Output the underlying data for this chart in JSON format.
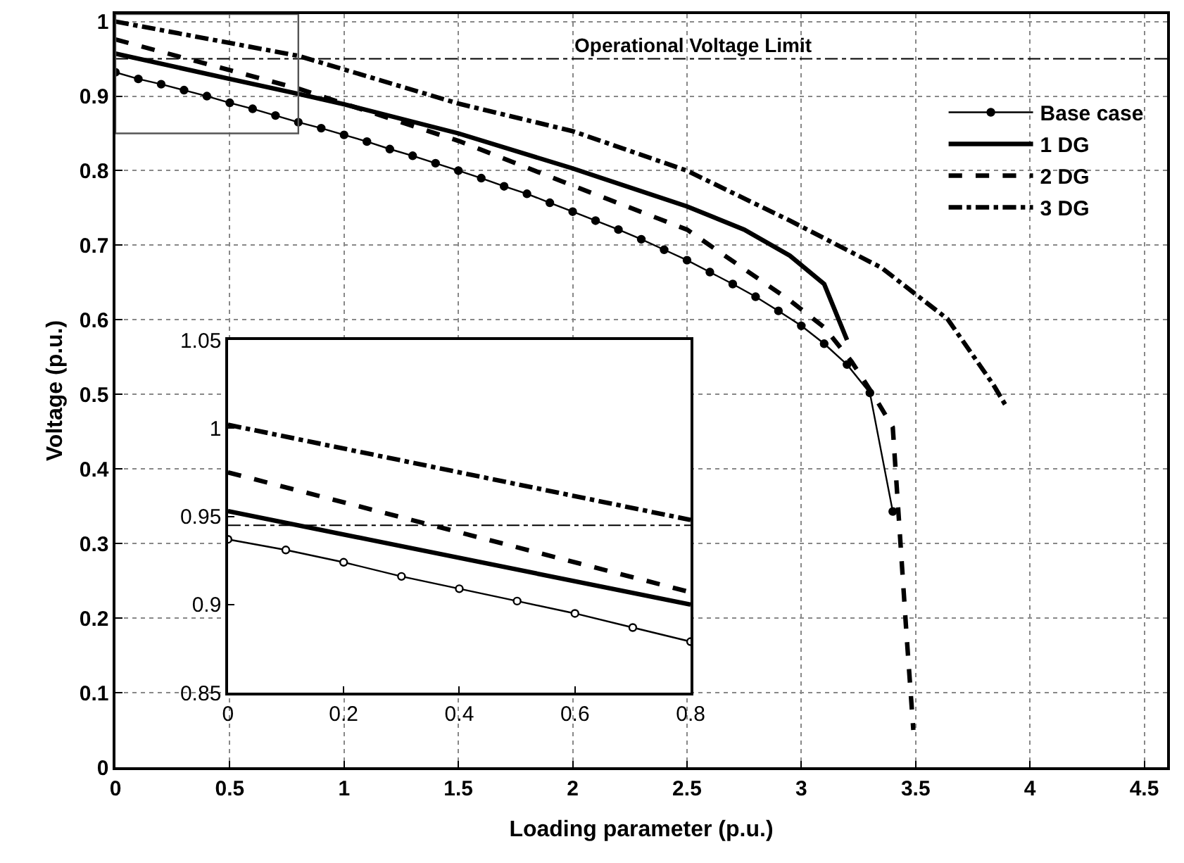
{
  "chart_data": [
    {
      "type": "line",
      "xlabel": "Loading parameter (p.u.)",
      "ylabel": "Voltage (p.u.)",
      "xlim": [
        0,
        4.6
      ],
      "ylim": [
        0,
        1.01
      ],
      "xticks": [
        0,
        0.5,
        1,
        1.5,
        2,
        2.5,
        3,
        3.5,
        4,
        4.5
      ],
      "yticks": [
        0,
        0.1,
        0.2,
        0.3,
        0.4,
        0.5,
        0.6,
        0.7,
        0.8,
        0.9,
        1
      ],
      "grid": true,
      "legend": "top right",
      "series": [
        {
          "name": "Base case",
          "color": "#000000",
          "marker": "circle",
          "line_style": "solid",
          "x": [
            0,
            0.1,
            0.2,
            0.3,
            0.4,
            0.5,
            0.6,
            0.7,
            0.8,
            0.9,
            1.0,
            1.1,
            1.2,
            1.3,
            1.4,
            1.5,
            1.6,
            1.7,
            1.8,
            1.9,
            2.0,
            2.1,
            2.2,
            2.3,
            2.4,
            2.5,
            2.6,
            2.7,
            2.8,
            2.9,
            3.0,
            3.1,
            3.2,
            3.3,
            3.4
          ],
          "values": [
            0.932,
            0.923,
            0.916,
            0.908,
            0.9,
            0.891,
            0.883,
            0.874,
            0.865,
            0.857,
            0.848,
            0.839,
            0.829,
            0.82,
            0.81,
            0.8,
            0.79,
            0.779,
            0.769,
            0.757,
            0.745,
            0.733,
            0.721,
            0.708,
            0.694,
            0.68,
            0.664,
            0.648,
            0.631,
            0.612,
            0.592,
            0.568,
            0.54,
            0.502,
            0.343
          ]
        },
        {
          "name": "1 DG",
          "color": "#000000",
          "marker": "none",
          "line_style": "solid",
          "x": [
            0,
            0.5,
            0.8,
            1.0,
            1.5,
            2.0,
            2.5,
            2.75,
            2.95,
            3.1,
            3.2
          ],
          "values": [
            0.957,
            0.923,
            0.903,
            0.889,
            0.85,
            0.803,
            0.752,
            0.721,
            0.686,
            0.648,
            0.573
          ]
        },
        {
          "name": "2 DG",
          "color": "#000000",
          "marker": "none",
          "line_style": "dashed",
          "x": [
            0,
            0.8,
            1.5,
            2.0,
            2.5,
            2.95,
            3.1,
            3.22,
            3.32,
            3.4,
            3.43,
            3.46,
            3.49
          ],
          "values": [
            0.976,
            0.91,
            0.84,
            0.78,
            0.721,
            0.626,
            0.59,
            0.544,
            0.497,
            0.456,
            0.318,
            0.179,
            0.05
          ]
        },
        {
          "name": "3 DG",
          "color": "#000000",
          "marker": "none",
          "line_style": "dashdot",
          "x": [
            0,
            0.8,
            1.5,
            2.0,
            2.5,
            2.95,
            3.35,
            3.64,
            3.84,
            3.9
          ],
          "values": [
            1.0,
            0.954,
            0.89,
            0.853,
            0.8,
            0.733,
            0.67,
            0.601,
            0.513,
            0.482
          ]
        }
      ],
      "ref_lines": [
        {
          "axis": "y",
          "value": 0.95,
          "label": "Operational Voltage Limit",
          "color": "#000000",
          "line_style": "dashdot"
        }
      ]
    },
    {
      "type": "line",
      "xlim": [
        0,
        0.8
      ],
      "ylim": [
        0.85,
        1.05
      ],
      "xticks": [
        0,
        0.2,
        0.4,
        0.6,
        0.8
      ],
      "yticks": [
        0.85,
        0.9,
        0.95,
        1,
        1.05
      ],
      "grid": false,
      "series": [
        {
          "color": "#000000",
          "marker": "circle",
          "line_style": "solid",
          "x": [
            0,
            0.1,
            0.2,
            0.3,
            0.4,
            0.5,
            0.6,
            0.7,
            0.8
          ],
          "values": [
            0.937,
            0.931,
            0.924,
            0.916,
            0.909,
            0.902,
            0.895,
            0.887,
            0.879
          ]
        },
        {
          "color": "#000000",
          "marker": "none",
          "line_style": "solid",
          "x": [
            0,
            0.8
          ],
          "values": [
            0.953,
            0.9
          ]
        },
        {
          "color": "#000000",
          "marker": "none",
          "line_style": "dashed",
          "x": [
            0,
            0.8
          ],
          "values": [
            0.975,
            0.907
          ]
        },
        {
          "color": "#000000",
          "marker": "none",
          "line_style": "dashdot",
          "x": [
            0,
            0.8
          ],
          "values": [
            1.002,
            0.948
          ]
        }
      ],
      "ref_lines": [
        {
          "axis": "y",
          "value": 0.945,
          "color": "#000000",
          "line_style": "dashdot"
        }
      ]
    }
  ]
}
